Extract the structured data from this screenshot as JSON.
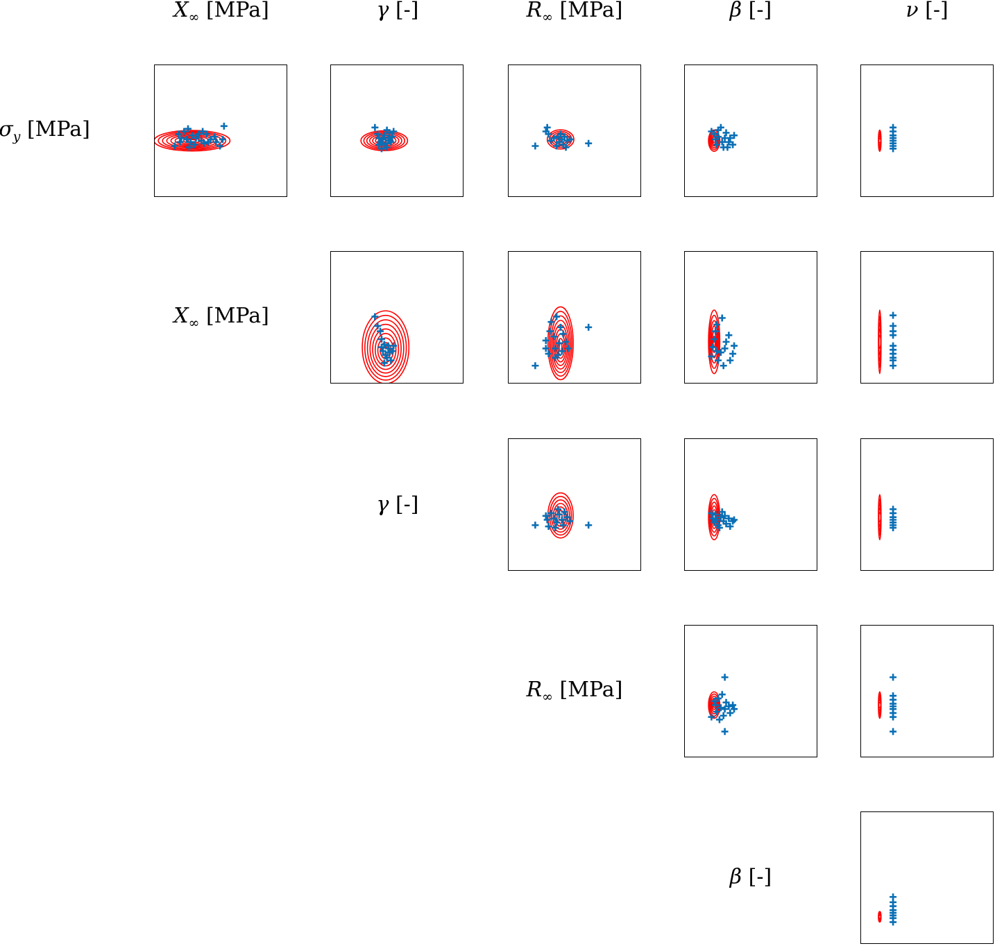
{
  "colors": {
    "contour": "#ff0000",
    "points": "#0a6fb5",
    "frame": "#000000"
  },
  "labels": {
    "sigma_y": {
      "sym": "σ",
      "sub": "y",
      "unit": "[MPa]"
    },
    "X_inf": {
      "sym": "X",
      "sub": "∞",
      "unit": "[MPa]"
    },
    "gamma": {
      "sym": "γ",
      "sub": "",
      "unit": "[-]"
    },
    "R_inf": {
      "sym": "R",
      "sub": "∞",
      "unit": "[MPa]"
    },
    "beta": {
      "sym": "β",
      "sub": "",
      "unit": "[-]"
    },
    "nu": {
      "sym": "ν",
      "sub": "",
      "unit": "[-]"
    }
  },
  "chart_data": {
    "type": "scatter",
    "layout": "upper-triangular pairwise matrix of parameter posteriors",
    "parameters": [
      "sigma_y",
      "X_inf",
      "gamma",
      "R_inf",
      "beta",
      "nu"
    ],
    "axis_ticks": "none",
    "grid": false,
    "panels": [
      {
        "row": "sigma_y",
        "col": "X_inf",
        "contour": {
          "cx": 0.28,
          "cy": 0.57,
          "rx": 0.57,
          "ry": 0.155,
          "levels": 9
        },
        "points": [
          [
            0.15,
            0.61
          ],
          [
            0.18,
            0.52
          ],
          [
            0.2,
            0.55
          ],
          [
            0.22,
            0.5
          ],
          [
            0.24,
            0.56
          ],
          [
            0.25,
            0.48
          ],
          [
            0.27,
            0.58
          ],
          [
            0.28,
            0.53
          ],
          [
            0.3,
            0.6
          ],
          [
            0.31,
            0.55
          ],
          [
            0.33,
            0.52
          ],
          [
            0.35,
            0.57
          ],
          [
            0.37,
            0.59
          ],
          [
            0.39,
            0.52
          ],
          [
            0.42,
            0.56
          ],
          [
            0.45,
            0.54
          ],
          [
            0.46,
            0.58
          ],
          [
            0.49,
            0.61
          ],
          [
            0.51,
            0.56
          ],
          [
            0.26,
            0.62
          ],
          [
            0.36,
            0.5
          ],
          [
            0.52,
            0.46
          ],
          [
            0.4,
            0.58
          ],
          [
            0.19,
            0.58
          ]
        ]
      },
      {
        "row": "sigma_y",
        "col": "gamma",
        "contour": {
          "cx": 0.4,
          "cy": 0.57,
          "rx": 0.35,
          "ry": 0.15,
          "levels": 8
        },
        "points": [
          [
            0.33,
            0.47
          ],
          [
            0.35,
            0.52
          ],
          [
            0.36,
            0.55
          ],
          [
            0.37,
            0.58
          ],
          [
            0.38,
            0.6
          ],
          [
            0.39,
            0.56
          ],
          [
            0.4,
            0.53
          ],
          [
            0.41,
            0.59
          ],
          [
            0.42,
            0.62
          ],
          [
            0.43,
            0.55
          ],
          [
            0.44,
            0.51
          ],
          [
            0.45,
            0.58
          ],
          [
            0.46,
            0.54
          ],
          [
            0.47,
            0.5
          ],
          [
            0.38,
            0.63
          ],
          [
            0.42,
            0.49
          ],
          [
            0.36,
            0.6
          ],
          [
            0.44,
            0.57
          ]
        ]
      },
      {
        "row": "sigma_y",
        "col": "R_inf",
        "contour": {
          "cx": 0.39,
          "cy": 0.56,
          "rx": 0.2,
          "ry": 0.145,
          "levels": 6
        },
        "points": [
          [
            0.2,
            0.61
          ],
          [
            0.28,
            0.5
          ],
          [
            0.29,
            0.47
          ],
          [
            0.3,
            0.52
          ],
          [
            0.32,
            0.57
          ],
          [
            0.34,
            0.55
          ],
          [
            0.36,
            0.61
          ],
          [
            0.37,
            0.54
          ],
          [
            0.38,
            0.58
          ],
          [
            0.4,
            0.56
          ],
          [
            0.41,
            0.6
          ],
          [
            0.42,
            0.54
          ],
          [
            0.44,
            0.57
          ],
          [
            0.46,
            0.56
          ],
          [
            0.6,
            0.59
          ],
          [
            0.39,
            0.52
          ],
          [
            0.43,
            0.62
          ]
        ]
      },
      {
        "row": "sigma_y",
        "col": "beta",
        "contour": {
          "cx": 0.22,
          "cy": 0.57,
          "rx": 0.085,
          "ry": 0.16,
          "levels": 6
        },
        "points": [
          [
            0.2,
            0.5
          ],
          [
            0.22,
            0.52
          ],
          [
            0.23,
            0.56
          ],
          [
            0.24,
            0.6
          ],
          [
            0.25,
            0.54
          ],
          [
            0.27,
            0.47
          ],
          [
            0.28,
            0.58
          ],
          [
            0.29,
            0.62
          ],
          [
            0.3,
            0.55
          ],
          [
            0.31,
            0.51
          ],
          [
            0.33,
            0.58
          ],
          [
            0.34,
            0.55
          ],
          [
            0.36,
            0.6
          ],
          [
            0.37,
            0.53
          ],
          [
            0.25,
            0.49
          ],
          [
            0.32,
            0.62
          ]
        ]
      },
      {
        "row": "sigma_y",
        "col": "nu",
        "contour": {
          "cx": 0.14,
          "cy": 0.57,
          "rx": 0.02,
          "ry": 0.16,
          "levels": 5
        },
        "points": [
          [
            0.24,
            0.47
          ],
          [
            0.24,
            0.5
          ],
          [
            0.24,
            0.53
          ],
          [
            0.24,
            0.55
          ],
          [
            0.24,
            0.57
          ],
          [
            0.24,
            0.59
          ],
          [
            0.24,
            0.61
          ],
          [
            0.24,
            0.63
          ]
        ]
      },
      {
        "row": "X_inf",
        "col": "gamma",
        "contour": {
          "cx": 0.41,
          "cy": 0.75,
          "rx": 0.35,
          "ry": 0.55,
          "levels": 9,
          "skew": 0.4
        },
        "points": [
          [
            0.33,
            0.49
          ],
          [
            0.35,
            0.56
          ],
          [
            0.37,
            0.6
          ],
          [
            0.38,
            0.66
          ],
          [
            0.38,
            0.72
          ],
          [
            0.39,
            0.75
          ],
          [
            0.4,
            0.7
          ],
          [
            0.41,
            0.78
          ],
          [
            0.42,
            0.8
          ],
          [
            0.43,
            0.73
          ],
          [
            0.44,
            0.76
          ],
          [
            0.45,
            0.82
          ],
          [
            0.46,
            0.75
          ],
          [
            0.43,
            0.71
          ],
          [
            0.4,
            0.84
          ],
          [
            0.47,
            0.71
          ]
        ]
      },
      {
        "row": "X_inf",
        "col": "R_inf",
        "contour": {
          "cx": 0.39,
          "cy": 0.72,
          "rx": 0.19,
          "ry": 0.55,
          "levels": 9,
          "skew": 0.4
        },
        "points": [
          [
            0.2,
            0.86
          ],
          [
            0.28,
            0.67
          ],
          [
            0.28,
            0.73
          ],
          [
            0.3,
            0.77
          ],
          [
            0.31,
            0.6
          ],
          [
            0.32,
            0.53
          ],
          [
            0.34,
            0.64
          ],
          [
            0.35,
            0.73
          ],
          [
            0.36,
            0.49
          ],
          [
            0.37,
            0.78
          ],
          [
            0.38,
            0.69
          ],
          [
            0.39,
            0.57
          ],
          [
            0.4,
            0.75
          ],
          [
            0.41,
            0.62
          ],
          [
            0.43,
            0.68
          ],
          [
            0.45,
            0.73
          ],
          [
            0.6,
            0.57
          ],
          [
            0.35,
            0.8
          ]
        ]
      },
      {
        "row": "X_inf",
        "col": "beta",
        "contour": {
          "cx": 0.22,
          "cy": 0.68,
          "rx": 0.085,
          "ry": 0.48,
          "levels": 6
        },
        "points": [
          [
            0.2,
            0.79
          ],
          [
            0.21,
            0.72
          ],
          [
            0.22,
            0.66
          ],
          [
            0.23,
            0.6
          ],
          [
            0.24,
            0.55
          ],
          [
            0.25,
            0.82
          ],
          [
            0.27,
            0.76
          ],
          [
            0.28,
            0.5
          ],
          [
            0.29,
            0.86
          ],
          [
            0.3,
            0.73
          ],
          [
            0.31,
            0.68
          ],
          [
            0.33,
            0.63
          ],
          [
            0.34,
            0.82
          ],
          [
            0.36,
            0.77
          ],
          [
            0.37,
            0.71
          ],
          [
            0.24,
            0.75
          ]
        ]
      },
      {
        "row": "X_inf",
        "col": "nu",
        "contour": {
          "cx": 0.14,
          "cy": 0.68,
          "rx": 0.02,
          "ry": 0.48,
          "levels": 5
        },
        "points": [
          [
            0.24,
            0.48
          ],
          [
            0.24,
            0.56
          ],
          [
            0.24,
            0.6
          ],
          [
            0.24,
            0.63
          ],
          [
            0.24,
            0.71
          ],
          [
            0.24,
            0.74
          ],
          [
            0.24,
            0.77
          ],
          [
            0.24,
            0.8
          ],
          [
            0.24,
            0.82
          ],
          [
            0.24,
            0.86
          ]
        ]
      },
      {
        "row": "gamma",
        "col": "R_inf",
        "contour": {
          "cx": 0.39,
          "cy": 0.59,
          "rx": 0.19,
          "ry": 0.34,
          "levels": 7,
          "skew": 0.3
        },
        "points": [
          [
            0.2,
            0.65
          ],
          [
            0.28,
            0.58
          ],
          [
            0.29,
            0.61
          ],
          [
            0.3,
            0.66
          ],
          [
            0.32,
            0.56
          ],
          [
            0.34,
            0.6
          ],
          [
            0.36,
            0.63
          ],
          [
            0.37,
            0.53
          ],
          [
            0.38,
            0.57
          ],
          [
            0.4,
            0.61
          ],
          [
            0.41,
            0.65
          ],
          [
            0.42,
            0.55
          ],
          [
            0.44,
            0.59
          ],
          [
            0.46,
            0.62
          ],
          [
            0.6,
            0.65
          ],
          [
            0.35,
            0.67
          ]
        ]
      },
      {
        "row": "gamma",
        "col": "beta",
        "contour": {
          "cx": 0.22,
          "cy": 0.59,
          "rx": 0.085,
          "ry": 0.34,
          "levels": 6
        },
        "points": [
          [
            0.2,
            0.56
          ],
          [
            0.21,
            0.6
          ],
          [
            0.22,
            0.63
          ],
          [
            0.23,
            0.57
          ],
          [
            0.24,
            0.61
          ],
          [
            0.25,
            0.65
          ],
          [
            0.27,
            0.59
          ],
          [
            0.28,
            0.55
          ],
          [
            0.29,
            0.62
          ],
          [
            0.3,
            0.58
          ],
          [
            0.31,
            0.64
          ],
          [
            0.33,
            0.6
          ],
          [
            0.34,
            0.66
          ],
          [
            0.36,
            0.62
          ],
          [
            0.37,
            0.61
          ],
          [
            0.26,
            0.67
          ]
        ]
      },
      {
        "row": "gamma",
        "col": "nu",
        "contour": {
          "cx": 0.14,
          "cy": 0.59,
          "rx": 0.02,
          "ry": 0.34,
          "levels": 5
        },
        "points": [
          [
            0.24,
            0.53
          ],
          [
            0.24,
            0.56
          ],
          [
            0.24,
            0.59
          ],
          [
            0.24,
            0.61
          ],
          [
            0.24,
            0.63
          ],
          [
            0.24,
            0.65
          ],
          [
            0.24,
            0.67
          ]
        ]
      },
      {
        "row": "R_inf",
        "col": "beta",
        "contour": {
          "cx": 0.22,
          "cy": 0.6,
          "rx": 0.085,
          "ry": 0.2,
          "levels": 6
        },
        "points": [
          [
            0.2,
            0.69
          ],
          [
            0.22,
            0.57
          ],
          [
            0.23,
            0.6
          ],
          [
            0.24,
            0.65
          ],
          [
            0.25,
            0.55
          ],
          [
            0.27,
            0.62
          ],
          [
            0.28,
            0.52
          ],
          [
            0.29,
            0.68
          ],
          [
            0.3,
            0.63
          ],
          [
            0.31,
            0.58
          ],
          [
            0.33,
            0.61
          ],
          [
            0.34,
            0.66
          ],
          [
            0.36,
            0.6
          ],
          [
            0.37,
            0.63
          ],
          [
            0.3,
            0.39
          ],
          [
            0.3,
            0.8
          ],
          [
            0.26,
            0.71
          ]
        ]
      },
      {
        "row": "R_inf",
        "col": "nu",
        "contour": {
          "cx": 0.14,
          "cy": 0.6,
          "rx": 0.02,
          "ry": 0.2,
          "levels": 5
        },
        "points": [
          [
            0.24,
            0.39
          ],
          [
            0.24,
            0.53
          ],
          [
            0.24,
            0.56
          ],
          [
            0.24,
            0.59
          ],
          [
            0.24,
            0.61
          ],
          [
            0.24,
            0.63
          ],
          [
            0.24,
            0.66
          ],
          [
            0.24,
            0.69
          ],
          [
            0.24,
            0.8
          ]
        ]
      },
      {
        "row": "beta",
        "col": "nu",
        "contour": {
          "cx": 0.14,
          "cy": 0.79,
          "rx": 0.02,
          "ry": 0.08,
          "levels": 4
        },
        "points": [
          [
            0.24,
            0.64
          ],
          [
            0.24,
            0.68
          ],
          [
            0.24,
            0.71
          ],
          [
            0.24,
            0.74
          ],
          [
            0.24,
            0.76
          ],
          [
            0.24,
            0.78
          ],
          [
            0.24,
            0.8
          ],
          [
            0.24,
            0.83
          ]
        ]
      }
    ]
  }
}
